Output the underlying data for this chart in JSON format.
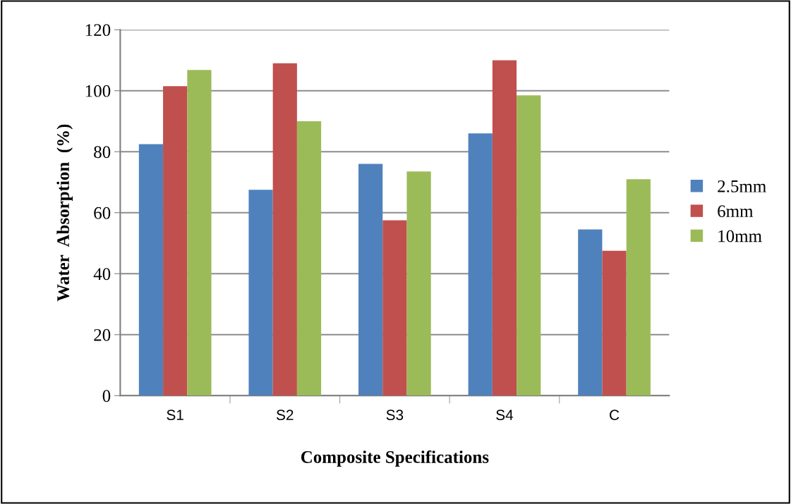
{
  "chart_data": {
    "type": "bar",
    "xlabel": "Composite Specifications",
    "ylabel": "Water  Absorption  (%)",
    "categories": [
      "S1",
      "S2",
      "S3",
      "S4",
      "C"
    ],
    "series": [
      {
        "name": "2.5mm",
        "color": "#4f81bd",
        "values": [
          82.5,
          67.5,
          76,
          86,
          54.5
        ]
      },
      {
        "name": "6mm",
        "color": "#c0504d",
        "values": [
          101.5,
          109,
          57.5,
          110,
          47.5
        ]
      },
      {
        "name": "10mm",
        "color": "#9bbb59",
        "values": [
          106.8,
          90,
          73.5,
          98.5,
          71
        ]
      }
    ],
    "ylim": [
      0,
      120
    ],
    "yticks": [
      0,
      20,
      40,
      60,
      80,
      100,
      120
    ],
    "grid": "y",
    "legend": "right"
  }
}
